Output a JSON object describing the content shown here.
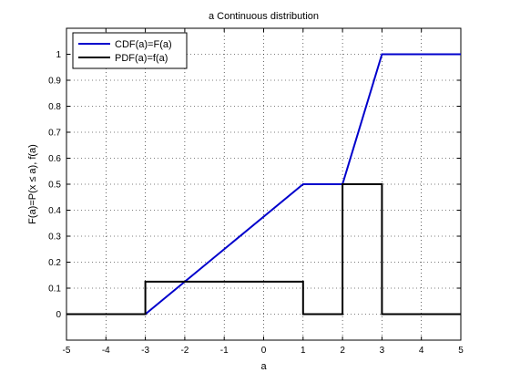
{
  "chart_data": {
    "type": "line",
    "title": "a Continuous distribution",
    "xlabel": "a",
    "ylabel": "F(a)=P(x ≤ a), f(a)",
    "xlim": [
      -5,
      5
    ],
    "ylim": [
      -0.1,
      1.1
    ],
    "xticks": [
      -5,
      -4,
      -3,
      -2,
      -1,
      0,
      1,
      2,
      3,
      4,
      5
    ],
    "xtick_labels": [
      "-5",
      "-4",
      "-3",
      "-2",
      "-1",
      "0",
      "1",
      "2",
      "3",
      "4",
      "5"
    ],
    "yticks": [
      0,
      0.1,
      0.2,
      0.3,
      0.4,
      0.5,
      0.6,
      0.7,
      0.8,
      0.9,
      1
    ],
    "ytick_labels": [
      "0",
      "0.1",
      "0.2",
      "0.3",
      "0.4",
      "0.5",
      "0.6",
      "0.7",
      "0.8",
      "0.9",
      "1"
    ],
    "grid": true,
    "legend_position": "top-left",
    "series": [
      {
        "name": "CDF(a)=F(a)",
        "color": "#0000cc",
        "x": [
          -5,
          -3,
          1,
          2,
          3,
          5
        ],
        "y": [
          0,
          0,
          0.5,
          0.5,
          1,
          1
        ]
      },
      {
        "name": "PDF(a)=f(a)",
        "color": "#000000",
        "x": [
          -5,
          -3,
          -3,
          1,
          1,
          2,
          2,
          3,
          3,
          5
        ],
        "y": [
          0,
          0,
          0.125,
          0.125,
          0,
          0,
          0.5,
          0.5,
          0,
          0
        ]
      }
    ]
  }
}
